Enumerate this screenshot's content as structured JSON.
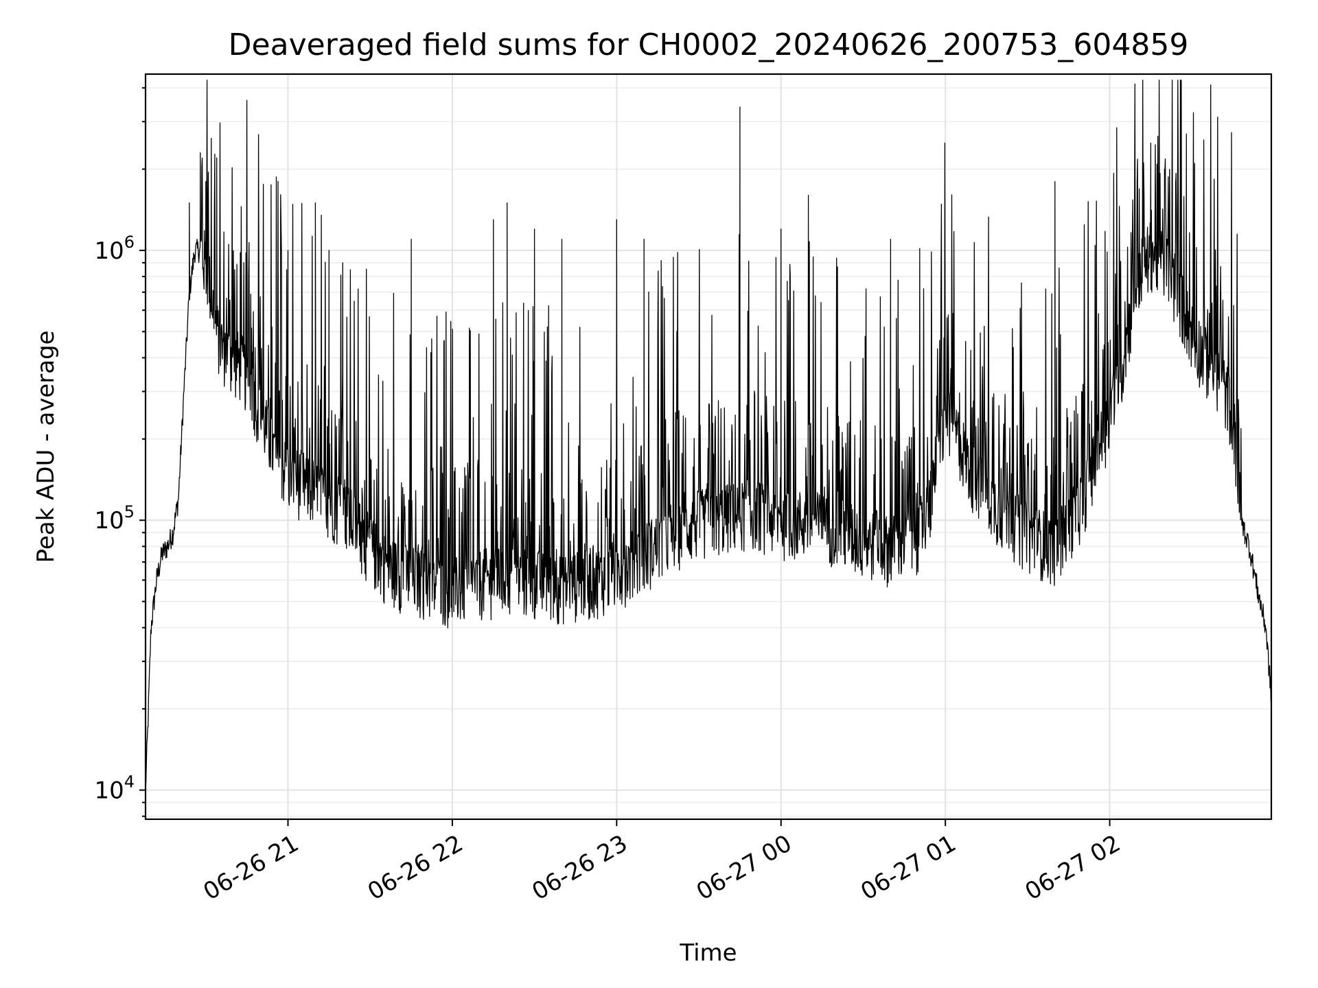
{
  "chart_data": {
    "type": "line",
    "title": "Deaveraged field sums for CH0002_20240626_200753_604859",
    "xlabel": "Time",
    "ylabel": "Peak ADU - average",
    "yscale": "log",
    "ylim": [
      7800,
      4500000
    ],
    "xlim": [
      "2024-06-26 20:08",
      "2024-06-27 02:59"
    ],
    "grid": true,
    "x_ticks": [
      "06-26 21",
      "06-26 22",
      "06-26 23",
      "06-27 00",
      "06-27 01",
      "06-27 02"
    ],
    "y_ticks": [
      {
        "base": "10",
        "exp": "4",
        "value": 10000
      },
      {
        "base": "10",
        "exp": "5",
        "value": 100000
      },
      {
        "base": "10",
        "exp": "6",
        "value": 1000000
      }
    ],
    "line_color": "#000000",
    "series": [
      {
        "x": [
          "2024-06-26 20:08",
          "2024-06-26 20:09",
          "2024-06-26 20:10",
          "2024-06-26 20:12",
          "2024-06-26 20:14",
          "2024-06-26 20:16",
          "2024-06-26 20:18",
          "2024-06-26 20:20",
          "2024-06-26 20:22",
          "2024-06-26 20:24",
          "2024-06-26 20:26",
          "2024-06-26 20:28",
          "2024-06-26 20:30",
          "2024-06-26 20:32",
          "2024-06-26 20:34",
          "2024-06-26 20:36",
          "2024-06-26 20:38",
          "2024-06-26 20:40",
          "2024-06-26 20:43",
          "2024-06-26 20:46",
          "2024-06-26 20:50",
          "2024-06-26 20:55",
          "2024-06-26 21:00",
          "2024-06-26 21:05",
          "2024-06-26 21:10",
          "2024-06-26 21:15",
          "2024-06-26 21:20",
          "2024-06-26 21:25",
          "2024-06-26 21:30",
          "2024-06-26 21:35",
          "2024-06-26 21:40",
          "2024-06-26 21:45",
          "2024-06-26 21:50",
          "2024-06-26 21:55",
          "2024-06-26 22:00",
          "2024-06-26 22:10",
          "2024-06-26 22:20",
          "2024-06-26 22:30",
          "2024-06-26 22:40",
          "2024-06-26 22:50",
          "2024-06-26 23:00",
          "2024-06-26 23:10",
          "2024-06-26 23:20",
          "2024-06-26 23:30",
          "2024-06-26 23:40",
          "2024-06-26 23:50",
          "2024-06-27 00:00",
          "2024-06-27 00:10",
          "2024-06-27 00:20",
          "2024-06-27 00:30",
          "2024-06-27 00:40",
          "2024-06-27 00:50",
          "2024-06-27 00:55",
          "2024-06-27 01:00",
          "2024-06-27 01:05",
          "2024-06-27 01:10",
          "2024-06-27 01:20",
          "2024-06-27 01:30",
          "2024-06-27 01:40",
          "2024-06-27 01:50",
          "2024-06-27 02:00",
          "2024-06-27 02:05",
          "2024-06-27 02:10",
          "2024-06-27 02:15",
          "2024-06-27 02:20",
          "2024-06-27 02:25",
          "2024-06-27 02:30",
          "2024-06-27 02:35",
          "2024-06-27 02:40",
          "2024-06-27 02:45",
          "2024-06-27 02:48",
          "2024-06-27 02:51",
          "2024-06-27 02:54",
          "2024-06-27 02:57",
          "2024-06-27 02:59"
        ],
        "values": [
          10000,
          19000,
          40000,
          60000,
          75000,
          80000,
          90000,
          120000,
          300000,
          700000,
          1000000,
          1000000,
          900000,
          700000,
          500000,
          450000,
          420000,
          400000,
          380000,
          330000,
          250000,
          180000,
          150000,
          140000,
          130000,
          120000,
          110000,
          95000,
          80000,
          70000,
          65000,
          62000,
          60000,
          57000,
          56000,
          60000,
          62000,
          60000,
          58000,
          60000,
          65000,
          75000,
          90000,
          100000,
          105000,
          110000,
          100000,
          100000,
          95000,
          85000,
          80000,
          90000,
          120000,
          250000,
          200000,
          150000,
          110000,
          90000,
          80000,
          120000,
          250000,
          400000,
          800000,
          1000000,
          900000,
          700000,
          500000,
          400000,
          350000,
          250000,
          100000,
          80000,
          55000,
          40000,
          22000
        ]
      }
    ],
    "peaks": {
      "x": [
        "2024-06-26 20:24",
        "2024-06-26 20:28",
        "2024-06-26 20:30",
        "2024-06-26 20:32",
        "2024-06-26 20:34",
        "2024-06-26 21:00",
        "2024-06-26 21:10",
        "2024-06-26 21:15",
        "2024-06-26 21:20",
        "2024-06-26 21:45",
        "2024-06-26 22:15",
        "2024-06-26 22:20",
        "2024-06-26 22:30",
        "2024-06-26 22:40",
        "2024-06-26 23:00",
        "2024-06-26 23:10",
        "2024-06-26 23:45",
        "2024-06-27 00:00",
        "2024-06-27 00:10",
        "2024-06-27 00:40",
        "2024-06-27 01:40",
        "2024-06-27 02:12",
        "2024-06-27 02:15",
        "2024-06-27 02:18",
        "2024-06-27 02:20",
        "2024-06-27 02:28",
        "2024-06-27 02:31"
      ],
      "values": [
        1500000,
        2300000,
        1800000,
        2600000,
        2200000,
        1000000,
        1500000,
        1000000,
        900000,
        1100000,
        1300000,
        1500000,
        1200000,
        1100000,
        1300000,
        1100000,
        3400000,
        1200000,
        1600000,
        1100000,
        1800000,
        2200000,
        2500000,
        2200000,
        2000000,
        2700000,
        2100000
      ]
    }
  }
}
